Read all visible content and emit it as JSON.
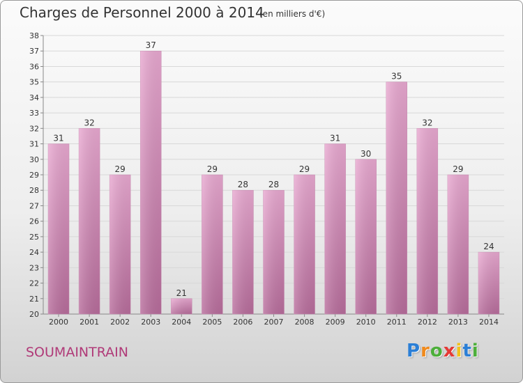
{
  "title": "Charges de Personnel 2000 à 2014",
  "subtitle": "(en milliers d'€)",
  "commune": "SOUMAINTRAIN",
  "logo": {
    "letters": [
      "P",
      "r",
      "o",
      "x",
      "i",
      "t",
      "i"
    ],
    "colors": [
      "#2b7fd6",
      "#f08a1c",
      "#4caf3a",
      "#e53935",
      "#f2c21b",
      "#2b7fd6",
      "#4caf3a"
    ]
  },
  "chart_data": {
    "type": "bar",
    "title": "Charges de Personnel 2000 à 2014",
    "categories": [
      "2000",
      "2001",
      "2002",
      "2003",
      "2004",
      "2005",
      "2006",
      "2007",
      "2008",
      "2009",
      "2010",
      "2011",
      "2012",
      "2013",
      "2014"
    ],
    "values": [
      31,
      32,
      29,
      37,
      21,
      29,
      28,
      28,
      29,
      31,
      30,
      35,
      32,
      29,
      24
    ],
    "ylim": [
      20,
      38
    ],
    "yticks": [
      20,
      21,
      22,
      23,
      24,
      25,
      26,
      27,
      28,
      29,
      30,
      31,
      32,
      33,
      34,
      35,
      36,
      37,
      38
    ],
    "grid": true,
    "bar_color": "#d890bb"
  }
}
